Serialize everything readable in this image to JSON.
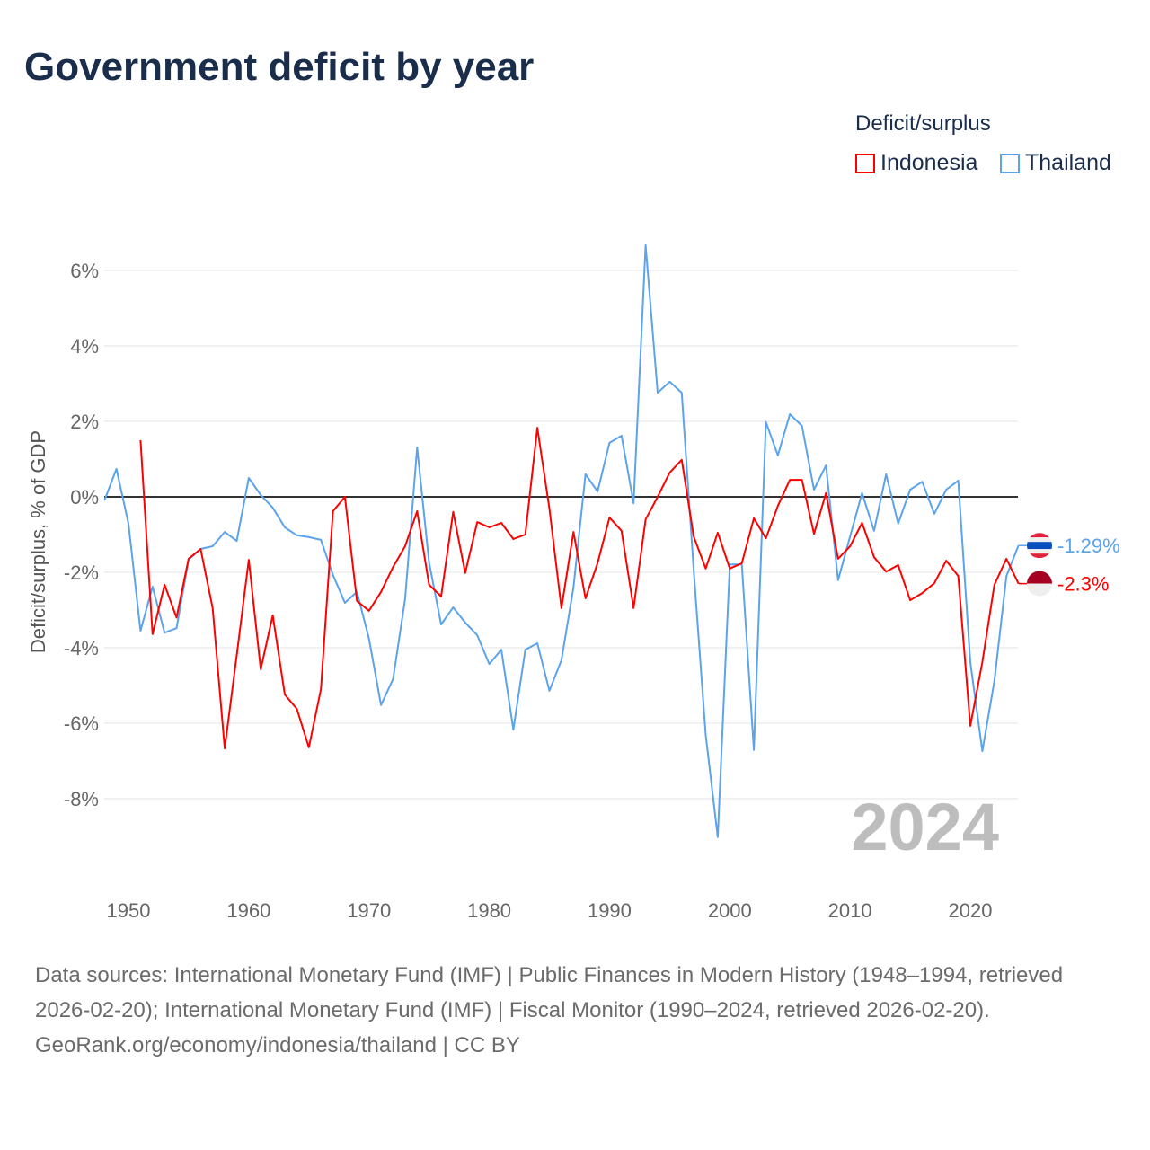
{
  "title": "Government deficit by year",
  "legend": {
    "title": "Deficit/surplus",
    "items": [
      {
        "name": "Indonesia",
        "color": "#ff0000"
      },
      {
        "name": "Thailand",
        "color": "#5ba3ec"
      }
    ]
  },
  "year_watermark": "2024",
  "footer": {
    "sources": "Data sources: International Monetary Fund (IMF) | Public Finances in Modern History (1948–1994, retrieved 2026-02-20); International Monetary Fund (IMF) | Fiscal Monitor (1990–2024, retrieved 2026-02-20).",
    "credit": "GeoRank.org/economy/indonesia/thailand | CC BY"
  },
  "chart_data": {
    "type": "line",
    "title": "Government deficit by year",
    "ylabel": "Deficit/surplus, % of GDP",
    "xlabel": "",
    "xlim": [
      1948,
      2024
    ],
    "ylim": [
      -10,
      7
    ],
    "yticks": [
      6,
      4,
      2,
      0,
      -2,
      -4,
      -6,
      -8
    ],
    "ytick_labels": [
      "6%",
      "4%",
      "2%",
      "0%",
      "-2%",
      "-4%",
      "-6%",
      "-8%"
    ],
    "xticks": [
      1950,
      1960,
      1970,
      1980,
      1990,
      2000,
      2010,
      2020
    ],
    "xtick_labels": [
      "1950",
      "1960",
      "1970",
      "1980",
      "1990",
      "2000",
      "2010",
      "2020"
    ],
    "grid": true,
    "legend_position": "top-right",
    "series": [
      {
        "name": "Indonesia",
        "color": "#ff0000",
        "start_year": 1951,
        "end_label": "-2.3%",
        "values": [
          1.5,
          -3.64,
          -2.33,
          -3.2,
          -1.64,
          -1.38,
          -2.95,
          -6.67,
          -4.2,
          -1.67,
          -4.57,
          -3.14,
          -5.24,
          -5.62,
          -6.64,
          -5.1,
          -0.38,
          0,
          -2.76,
          -3.02,
          -2.52,
          -1.86,
          -1.31,
          -0.38,
          -2.33,
          -2.64,
          -0.4,
          -2.02,
          -0.67,
          -0.81,
          -0.69,
          -1.12,
          -1.0,
          1.83,
          -0.31,
          -2.95,
          -0.93,
          -2.69,
          -1.76,
          -0.55,
          -0.9,
          -2.95,
          -0.6,
          0.0,
          0.64,
          0.98,
          -1.05,
          -1.9,
          -0.95,
          -1.9,
          -1.76,
          -0.57,
          -1.1,
          -0.24,
          0.45,
          0.45,
          -0.98,
          0.1,
          -1.64,
          -1.31,
          -0.69,
          -1.6,
          -1.98,
          -1.81,
          -2.74,
          -2.55,
          -2.29,
          -1.69,
          -2.1,
          -6.07,
          -4.38,
          -2.33,
          -1.64,
          -2.3
        ]
      },
      {
        "name": "Thailand",
        "color": "#5ba3ec",
        "start_year": 1948,
        "end_label": "-1.29%",
        "values": [
          -0.1,
          0.74,
          -0.71,
          -3.55,
          -2.38,
          -3.6,
          -3.48,
          -1.67,
          -1.38,
          -1.31,
          -0.93,
          -1.17,
          0.5,
          0.05,
          -0.29,
          -0.81,
          -1.02,
          -1.07,
          -1.14,
          -2.07,
          -2.81,
          -2.52,
          -3.76,
          -5.52,
          -4.83,
          -2.71,
          1.31,
          -1.74,
          -3.38,
          -2.93,
          -3.33,
          -3.67,
          -4.43,
          -4.05,
          -6.17,
          -4.05,
          -3.88,
          -5.14,
          -4.33,
          -2.4,
          0.6,
          0.14,
          1.43,
          1.62,
          -0.17,
          6.67,
          2.76,
          3.05,
          2.76,
          -1.93,
          -6.31,
          -9.02,
          -1.79,
          -1.79,
          -6.71,
          1.98,
          1.1,
          2.19,
          1.88,
          0.19,
          0.83,
          -2.21,
          -1.05,
          0.1,
          -0.9,
          0.6,
          -0.71,
          0.19,
          0.4,
          -0.45,
          0.19,
          0.43,
          -4.38,
          -6.74,
          -4.88,
          -2.1,
          -1.29
        ]
      }
    ]
  }
}
